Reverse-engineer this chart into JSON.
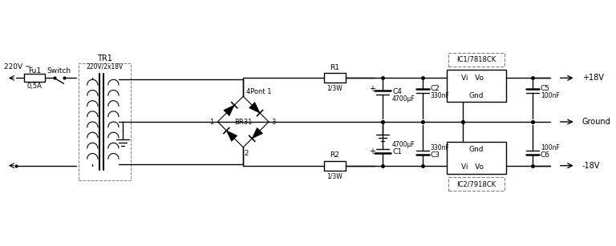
{
  "bg_color": "#ffffff",
  "line_color": "#000000",
  "component_labels": {
    "fu1": "Fu1",
    "fu1_val": "0,5A",
    "switch": "Switch",
    "tr1": "TR1",
    "tr1_val": "220V/2x18V",
    "bridge": "BR31",
    "pont": "Pont 1",
    "r1": "R1",
    "r1_val": "1/3W",
    "r2": "R2",
    "r2_val": "1/3W",
    "c4": "C4",
    "c4_val": "4700μF",
    "c1": "C1",
    "c1_val": "4700μF",
    "c2": "C2",
    "c2_val": "330nF",
    "c3": "C3",
    "c3_val": "330nF",
    "c5": "C5",
    "c5_val": "100nF",
    "c6": "C6",
    "c6_val": "100nF",
    "ic1": "IC1/7818CK",
    "ic2": "IC2/7918CK",
    "v220": "220V ~",
    "plus18v": "+18V",
    "minus18v": "-18V",
    "ground_label": "Ground"
  }
}
